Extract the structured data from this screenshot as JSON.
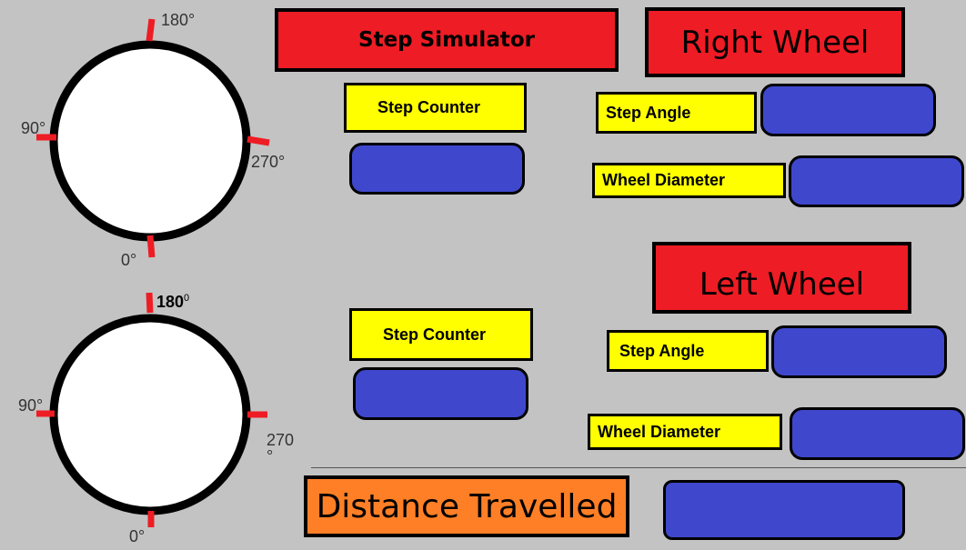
{
  "header": {
    "app_title": "Step Simulator"
  },
  "right_wheel": {
    "title": "Right Wheel",
    "step_counter_label": "Step Counter",
    "step_angle_label": "Step Angle",
    "wheel_diameter_label": "Wheel Diameter",
    "step_counter_value": "",
    "step_angle_value": "",
    "wheel_diameter_value": ""
  },
  "left_wheel": {
    "title": "Left Wheel",
    "step_counter_label": "Step Counter",
    "step_angle_label": "Step Angle",
    "wheel_diameter_label": "Wheel Diameter",
    "step_counter_value": "",
    "step_angle_value": "",
    "wheel_diameter_value": ""
  },
  "distance": {
    "label": "Distance Travelled",
    "value": ""
  },
  "dial_top": {
    "label_top": "180°",
    "label_left": "90°",
    "label_right": "270°",
    "label_bottom": "0°"
  },
  "dial_bottom": {
    "label_top": "180",
    "label_top_sup": "0",
    "label_left": "90°",
    "label_right_line1": "270",
    "label_right_line2": "°",
    "label_bottom": "0°"
  },
  "colors": {
    "background": "#c3c3c3",
    "title_red": "#ee1c24",
    "label_yellow": "#ffff00",
    "field_blue": "#3f48cc",
    "distance_orange": "#ff7f27",
    "tick_red": "#ee1c24"
  }
}
